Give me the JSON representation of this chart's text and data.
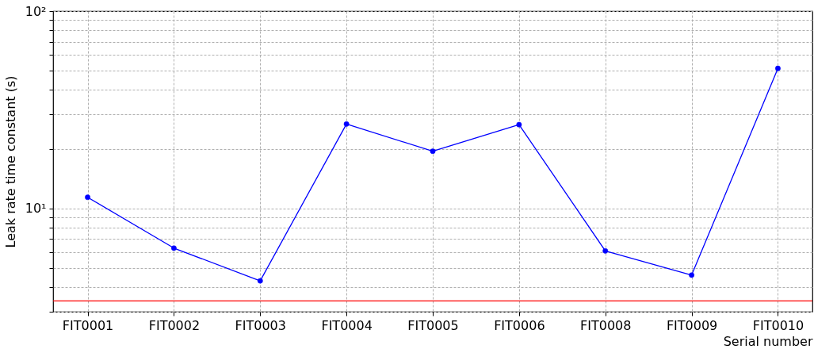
{
  "chart_data": {
    "type": "line",
    "xlabel": "Serial number",
    "ylabel": "Leak rate time constant (s)",
    "categories": [
      "FIT0001",
      "FIT0002",
      "FIT0003",
      "FIT0004",
      "FIT0005",
      "FIT0006",
      "FIT0008",
      "FIT0009",
      "FIT0010"
    ],
    "series": [
      {
        "color": "#0000ff",
        "values": [
          11.4,
          6.3,
          4.3,
          26.8,
          19.5,
          26.6,
          6.1,
          4.6,
          51.3
        ]
      }
    ],
    "log": true,
    "ylim": [
      3,
      100
    ],
    "yticks": [
      {
        "value": 3,
        "label": null
      },
      {
        "value": 4,
        "label": null
      },
      {
        "value": 5,
        "label": null
      },
      {
        "value": 6,
        "label": null
      },
      {
        "value": 7,
        "label": null
      },
      {
        "value": 8,
        "label": null
      },
      {
        "value": 9,
        "label": null
      },
      {
        "value": 10,
        "label": "10¹"
      },
      {
        "value": 20,
        "label": null
      },
      {
        "value": 30,
        "label": null
      },
      {
        "value": 40,
        "label": null
      },
      {
        "value": 50,
        "label": null
      },
      {
        "value": 60,
        "label": null
      },
      {
        "value": 70,
        "label": null
      },
      {
        "value": 80,
        "label": null
      },
      {
        "value": 90,
        "label": null
      },
      {
        "value": 100,
        "label": "10²"
      }
    ],
    "ref_lines": [
      {
        "axis": "y",
        "value": 3.4,
        "color": "#ff0000"
      }
    ],
    "grid": true,
    "marker": "circle",
    "line_style": "solid"
  }
}
